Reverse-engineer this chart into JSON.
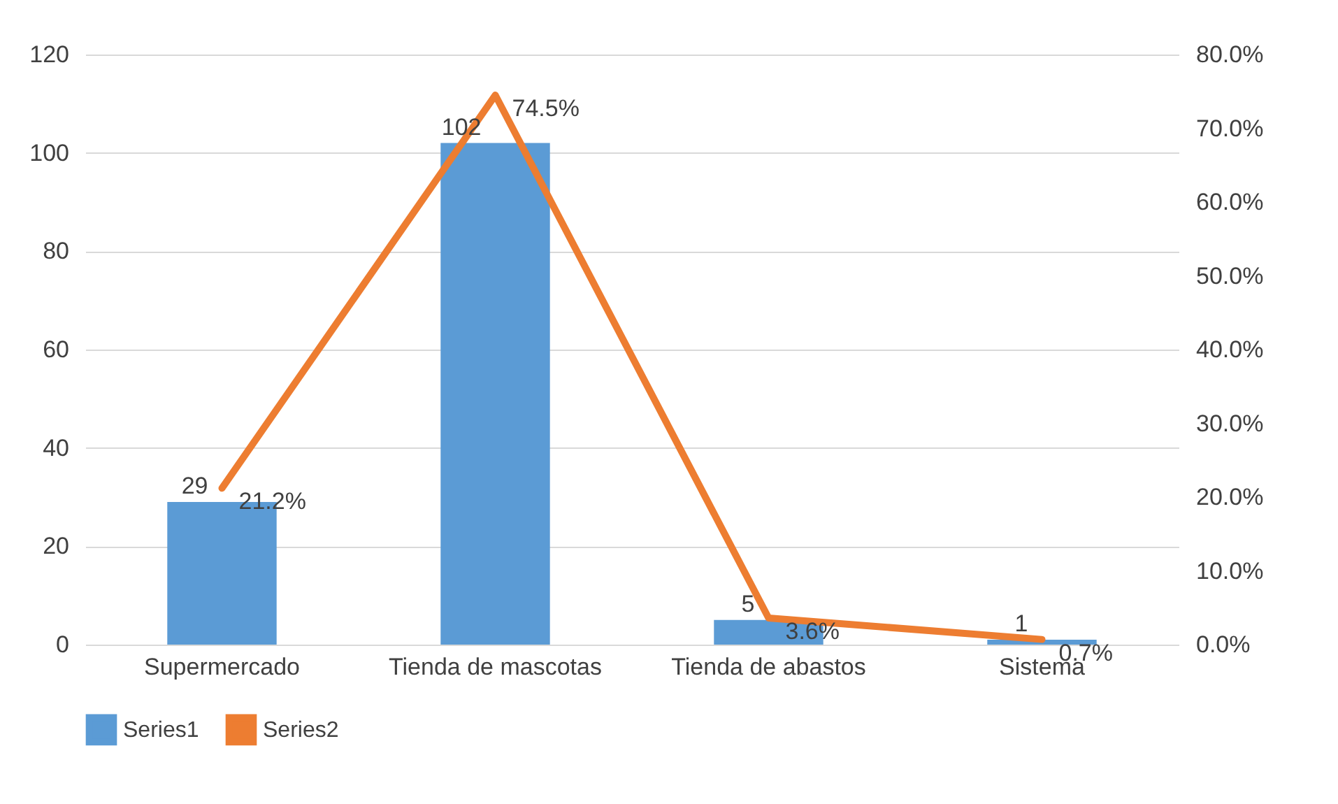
{
  "chart_data": {
    "type": "bar",
    "categories": [
      "Supermercado",
      "Tienda de mascotas",
      "Tienda de abastos",
      "Sistema"
    ],
    "series": [
      {
        "name": "Series1",
        "color": "#5b9bd5",
        "values": [
          29,
          102,
          5,
          1
        ],
        "value_labels": [
          "29",
          "102",
          "5",
          "1"
        ]
      },
      {
        "name": "Series2",
        "type": "line",
        "axis": "y2",
        "color": "#ed7d31",
        "values": [
          21.2,
          74.5,
          3.6,
          0.7
        ],
        "value_labels": [
          "21.2%",
          "74.5%",
          "3.6%",
          "0.7%"
        ]
      }
    ],
    "ylim": [
      0,
      120
    ],
    "yticks": [
      0,
      20,
      40,
      60,
      80,
      100,
      120
    ],
    "y2lim": [
      0,
      80
    ],
    "y2ticks": [
      {
        "value": 0,
        "label": "0.0%"
      },
      {
        "value": 10,
        "label": "10.0%"
      },
      {
        "value": 20,
        "label": "20.0%"
      },
      {
        "value": 30,
        "label": "30.0%"
      },
      {
        "value": 40,
        "label": "40.0%"
      },
      {
        "value": 50,
        "label": "50.0%"
      },
      {
        "value": 60,
        "label": "60.0%"
      },
      {
        "value": 70,
        "label": "70.0%"
      },
      {
        "value": 80,
        "label": "80.0%"
      }
    ],
    "grid": "y",
    "legend": "bottom",
    "marker": "none",
    "line_style": "solid"
  }
}
